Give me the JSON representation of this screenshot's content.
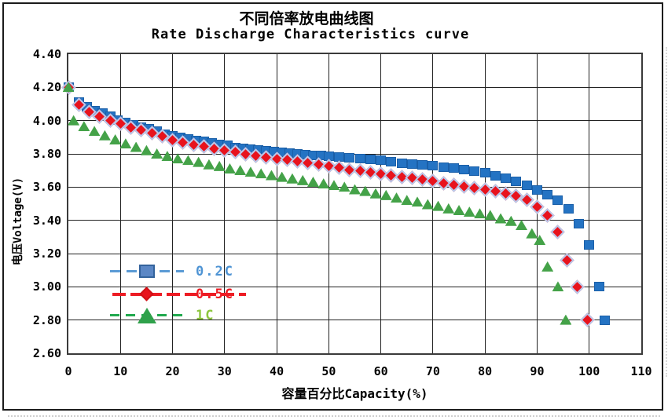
{
  "chart_data": {
    "type": "scatter",
    "title": "不同倍率放电曲线图",
    "subtitle": "Rate Discharge Characteristics curve",
    "xlabel": "容量百分比Capacity(%)",
    "ylabel": "电压Voltage(V)",
    "xlim": [
      0,
      110
    ],
    "ylim": [
      2.6,
      4.4
    ],
    "grid": true,
    "legend_position": "inside-left-middle",
    "x_ticks": [
      "0",
      "10",
      "20",
      "30",
      "40",
      "50",
      "60",
      "70",
      "80",
      "90",
      "100",
      "110"
    ],
    "y_ticks": [
      "4.40",
      "4.20",
      "4.00",
      "3.80",
      "3.60",
      "3.40",
      "3.20",
      "3.00",
      "2.80",
      "2.60"
    ],
    "series": [
      {
        "name": "0.2C",
        "marker": "square",
        "color": "#2473c3",
        "border": "#1a5fa8",
        "label_color": "#4f94d4",
        "legend_line_color": "#5b9bd5",
        "legend_marker_color": "#5b87c5",
        "legend_marker_border": "#33639c",
        "points": [
          [
            0,
            4.2
          ],
          [
            2,
            4.11
          ],
          [
            3.5,
            4.085
          ],
          [
            5,
            4.06
          ],
          [
            6.5,
            4.045
          ],
          [
            8,
            4.025
          ],
          [
            9.5,
            4.005
          ],
          [
            11,
            3.99
          ],
          [
            12.5,
            3.975
          ],
          [
            14,
            3.96
          ],
          [
            15.5,
            3.95
          ],
          [
            17,
            3.935
          ],
          [
            18.5,
            3.92
          ],
          [
            20,
            3.91
          ],
          [
            21.5,
            3.9
          ],
          [
            23,
            3.89
          ],
          [
            24.5,
            3.88
          ],
          [
            26,
            3.875
          ],
          [
            27.5,
            3.865
          ],
          [
            29,
            3.855
          ],
          [
            30.5,
            3.85
          ],
          [
            32,
            3.84
          ],
          [
            33.5,
            3.835
          ],
          [
            35,
            3.83
          ],
          [
            36.5,
            3.825
          ],
          [
            38,
            3.82
          ],
          [
            39.5,
            3.815
          ],
          [
            41,
            3.81
          ],
          [
            42.5,
            3.805
          ],
          [
            44,
            3.8
          ],
          [
            45.5,
            3.795
          ],
          [
            47,
            3.79
          ],
          [
            48.5,
            3.79
          ],
          [
            50,
            3.785
          ],
          [
            52,
            3.78
          ],
          [
            54,
            3.775
          ],
          [
            56,
            3.77
          ],
          [
            58,
            3.765
          ],
          [
            60,
            3.76
          ],
          [
            62,
            3.755
          ],
          [
            64,
            3.745
          ],
          [
            66,
            3.74
          ],
          [
            68,
            3.735
          ],
          [
            70,
            3.73
          ],
          [
            72,
            3.72
          ],
          [
            74,
            3.715
          ],
          [
            76,
            3.705
          ],
          [
            78,
            3.695
          ],
          [
            80,
            3.685
          ],
          [
            82,
            3.67
          ],
          [
            84,
            3.655
          ],
          [
            86,
            3.635
          ],
          [
            88,
            3.61
          ],
          [
            90,
            3.585
          ],
          [
            92,
            3.555
          ],
          [
            94,
            3.52
          ],
          [
            96,
            3.47
          ],
          [
            98,
            3.38
          ],
          [
            100,
            3.25
          ],
          [
            102,
            3.0
          ],
          [
            103,
            2.8
          ]
        ]
      },
      {
        "name": "0.5C",
        "marker": "diamond",
        "color": "#e8131d",
        "border": "#b9c9ec",
        "label_color": "#ed1c24",
        "legend_line_color": "#ed1c24",
        "legend_marker_color": "#e8131d",
        "legend_marker_border": "#d01016",
        "points": [
          [
            0,
            4.2
          ],
          [
            2,
            4.095
          ],
          [
            4,
            4.055
          ],
          [
            6,
            4.025
          ],
          [
            8,
            4.0
          ],
          [
            10,
            3.98
          ],
          [
            12,
            3.96
          ],
          [
            14,
            3.945
          ],
          [
            16,
            3.925
          ],
          [
            18,
            3.905
          ],
          [
            20,
            3.885
          ],
          [
            22,
            3.87
          ],
          [
            24,
            3.855
          ],
          [
            26,
            3.845
          ],
          [
            28,
            3.83
          ],
          [
            30,
            3.82
          ],
          [
            32,
            3.81
          ],
          [
            34,
            3.8
          ],
          [
            36,
            3.79
          ],
          [
            38,
            3.78
          ],
          [
            40,
            3.77
          ],
          [
            42,
            3.765
          ],
          [
            44,
            3.755
          ],
          [
            46,
            3.745
          ],
          [
            48,
            3.735
          ],
          [
            50,
            3.725
          ],
          [
            52,
            3.715
          ],
          [
            54,
            3.705
          ],
          [
            56,
            3.7
          ],
          [
            58,
            3.69
          ],
          [
            60,
            3.68
          ],
          [
            62,
            3.67
          ],
          [
            64,
            3.66
          ],
          [
            66,
            3.655
          ],
          [
            68,
            3.645
          ],
          [
            70,
            3.635
          ],
          [
            72,
            3.625
          ],
          [
            74,
            3.615
          ],
          [
            76,
            3.605
          ],
          [
            78,
            3.595
          ],
          [
            80,
            3.585
          ],
          [
            82,
            3.575
          ],
          [
            84,
            3.56
          ],
          [
            86,
            3.545
          ],
          [
            88,
            3.525
          ],
          [
            90,
            3.48
          ],
          [
            92,
            3.43
          ],
          [
            94,
            3.33
          ],
          [
            95.7,
            3.16
          ],
          [
            97.7,
            3.0
          ],
          [
            99.7,
            2.8
          ]
        ]
      },
      {
        "name": "1C",
        "marker": "triangle",
        "color": "#44a248",
        "border": "#9fd08d",
        "label_color": "#8dc63f",
        "legend_line_color": "#21a94e",
        "legend_marker_color": "#2fa14b",
        "legend_marker_border": "#8fc97e",
        "points": [
          [
            0,
            4.2
          ],
          [
            1,
            4.0
          ],
          [
            3,
            3.965
          ],
          [
            5,
            3.935
          ],
          [
            7,
            3.91
          ],
          [
            9,
            3.885
          ],
          [
            11,
            3.86
          ],
          [
            13,
            3.84
          ],
          [
            15,
            3.82
          ],
          [
            17,
            3.8
          ],
          [
            19,
            3.785
          ],
          [
            21,
            3.77
          ],
          [
            23,
            3.76
          ],
          [
            25,
            3.75
          ],
          [
            27,
            3.735
          ],
          [
            29,
            3.725
          ],
          [
            31,
            3.71
          ],
          [
            33,
            3.7
          ],
          [
            35,
            3.69
          ],
          [
            37,
            3.68
          ],
          [
            39,
            3.67
          ],
          [
            41,
            3.66
          ],
          [
            43,
            3.65
          ],
          [
            45,
            3.64
          ],
          [
            47,
            3.63
          ],
          [
            49,
            3.62
          ],
          [
            51,
            3.61
          ],
          [
            53,
            3.6
          ],
          [
            55,
            3.585
          ],
          [
            57,
            3.575
          ],
          [
            59,
            3.56
          ],
          [
            61,
            3.55
          ],
          [
            63,
            3.535
          ],
          [
            65,
            3.52
          ],
          [
            67,
            3.51
          ],
          [
            69,
            3.495
          ],
          [
            71,
            3.485
          ],
          [
            73,
            3.47
          ],
          [
            75,
            3.46
          ],
          [
            77,
            3.45
          ],
          [
            79,
            3.44
          ],
          [
            81,
            3.43
          ],
          [
            83,
            3.41
          ],
          [
            85,
            3.395
          ],
          [
            87,
            3.37
          ],
          [
            89,
            3.32
          ],
          [
            90.5,
            3.28
          ],
          [
            92,
            3.12
          ],
          [
            94,
            3.0
          ],
          [
            95.5,
            2.8
          ]
        ]
      }
    ]
  }
}
